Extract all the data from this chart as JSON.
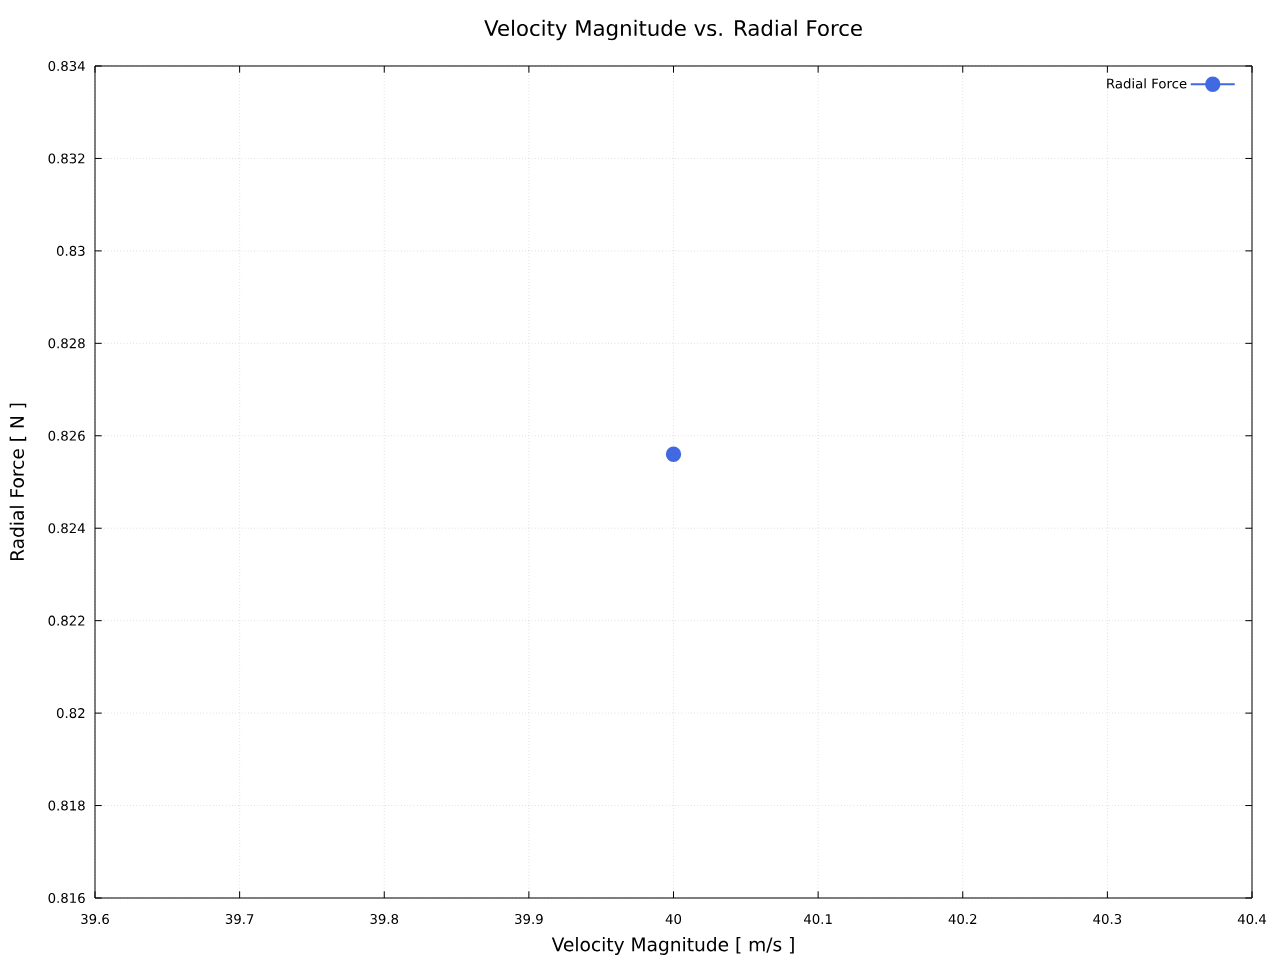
{
  "chart_data": {
    "type": "line",
    "title": "Velocity Magnitude vs. Radial Force",
    "xlabel": "Velocity Magnitude [ m/s ]",
    "ylabel": "Radial Force [ N ]",
    "x": [
      40
    ],
    "series": [
      {
        "name": "Radial Force",
        "color": "#4169e1",
        "values": [
          0.8256
        ]
      }
    ],
    "xlim": [
      39.6,
      40.4
    ],
    "ylim": [
      0.816,
      0.834
    ],
    "xticks": [
      39.6,
      39.7,
      39.8,
      39.9,
      40,
      40.1,
      40.2,
      40.3,
      40.4
    ],
    "yticks": [
      0.816,
      0.818,
      0.82,
      0.822,
      0.824,
      0.826,
      0.828,
      0.83,
      0.832,
      0.834
    ],
    "grid": true,
    "legend": "top right",
    "marker": "circle",
    "line_style": "solid"
  }
}
